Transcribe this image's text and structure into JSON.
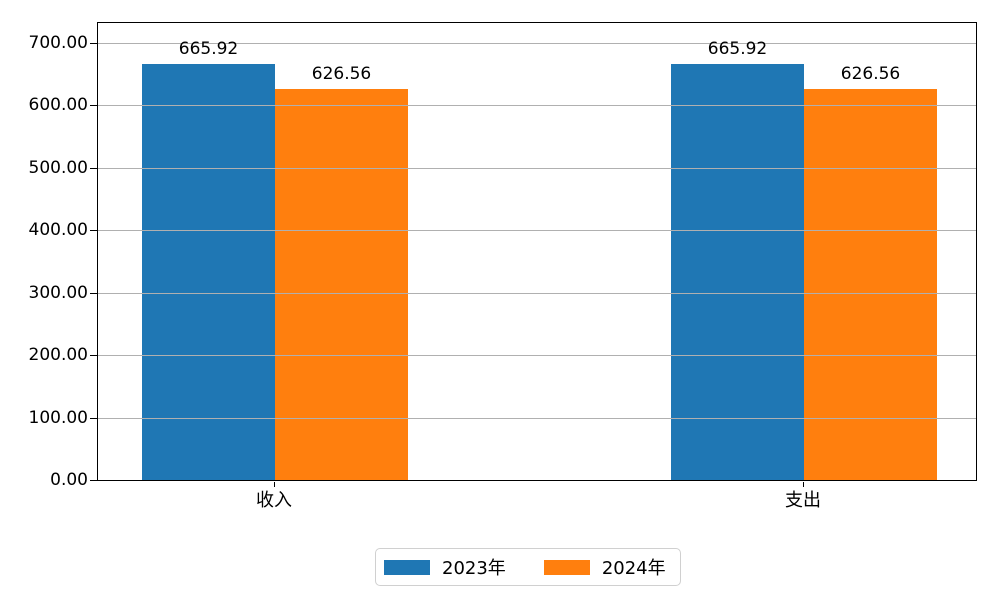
{
  "chart_data": {
    "type": "bar",
    "title": "",
    "xlabel": "",
    "ylabel": "",
    "categories": [
      "收入",
      "支出"
    ],
    "series": [
      {
        "name": "2023年",
        "color": "#1f77b4",
        "values": [
          665.92,
          665.92
        ],
        "value_labels": [
          "665.92",
          "665.92"
        ]
      },
      {
        "name": "2024年",
        "color": "#ff7f0e",
        "values": [
          626.56,
          626.56
        ],
        "value_labels": [
          "626.56",
          "626.56"
        ]
      }
    ],
    "ylim": [
      0,
      735
    ],
    "yticks": [
      {
        "value": 0,
        "label": "0.00"
      },
      {
        "value": 100,
        "label": "100.00"
      },
      {
        "value": 200,
        "label": "200.00"
      },
      {
        "value": 300,
        "label": "300.00"
      },
      {
        "value": 400,
        "label": "400.00"
      },
      {
        "value": 500,
        "label": "500.00"
      },
      {
        "value": 600,
        "label": "600.00"
      },
      {
        "value": 700,
        "label": "700.00"
      }
    ],
    "grid": "horizontal",
    "grid_color": "#b0b0b0",
    "axis_color": "#000000",
    "text_color": "#000000",
    "background_color": "#ffffff",
    "legend_position": "bottom-center"
  }
}
